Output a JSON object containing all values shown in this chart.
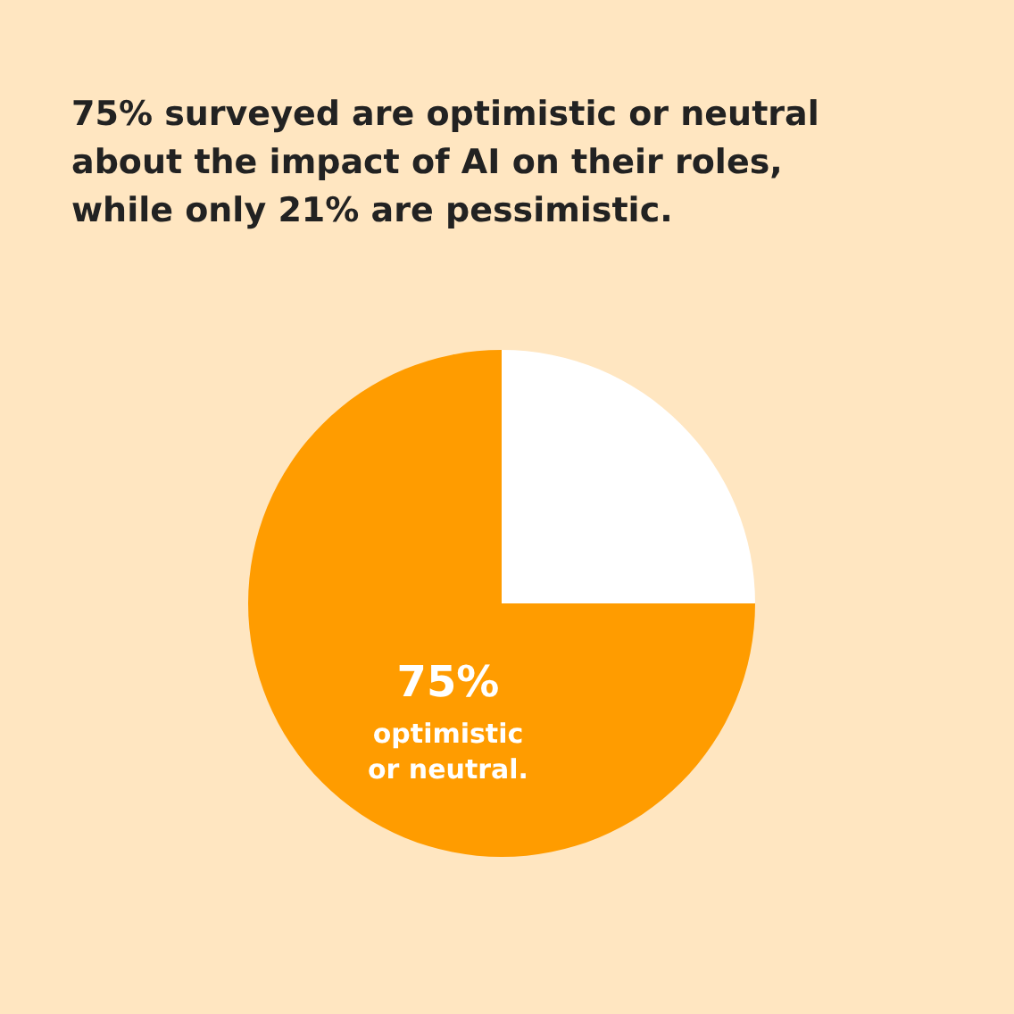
{
  "chart_data": {
    "type": "pie",
    "title": "75% surveyed are optimistic or neutral about the impact of AI on their roles, while only 21% are pessimistic.",
    "categories": [
      "optimistic or neutral.",
      null
    ],
    "values": [
      75,
      25
    ],
    "colors": [
      "#ff9c00",
      "#ffffff"
    ],
    "value_labels": [
      "75%",
      null
    ],
    "legend": false
  }
}
